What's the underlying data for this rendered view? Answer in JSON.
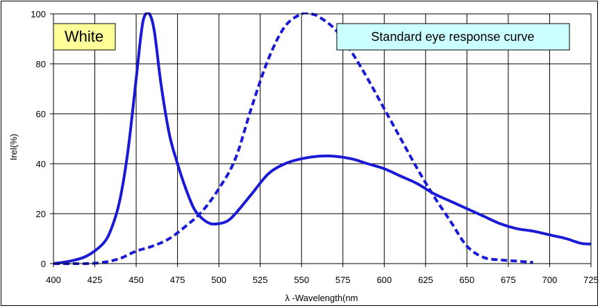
{
  "chart_data": {
    "type": "line",
    "title": "",
    "xlabel": "λ -Wavelength(nm",
    "ylabel": "Irel(%)",
    "xlim": [
      400,
      725
    ],
    "ylim": [
      0,
      100
    ],
    "x_ticks": [
      400,
      425,
      450,
      475,
      500,
      525,
      550,
      575,
      600,
      625,
      650,
      675,
      700,
      725
    ],
    "y_ticks": [
      0,
      20,
      40,
      60,
      80,
      100
    ],
    "grid": true,
    "annotations": [
      {
        "text": "White",
        "background": "#ffff99"
      },
      {
        "text": "Standard eye response curve",
        "background": "#ccffff"
      }
    ],
    "series": [
      {
        "color": "#1a1ad6",
        "style": "solid",
        "x": [
          400,
          410,
          420,
          430,
          435,
          440,
          445,
          450,
          453,
          455,
          458,
          461,
          465,
          470,
          475,
          480,
          485,
          490,
          495,
          500,
          505,
          510,
          520,
          530,
          540,
          550,
          560,
          570,
          580,
          590,
          600,
          610,
          620,
          630,
          640,
          650,
          660,
          670,
          680,
          690,
          700,
          710,
          720,
          730
        ],
        "y": [
          0,
          1,
          3,
          8,
          14,
          25,
          45,
          74,
          92,
          99,
          100,
          93,
          72,
          52,
          40,
          30,
          22,
          18,
          16,
          16,
          17,
          20,
          28,
          36,
          40,
          42,
          43,
          43,
          42,
          40,
          38,
          35,
          32,
          28,
          25,
          22,
          19,
          16,
          14,
          13,
          11.5,
          10,
          8,
          8
        ]
      },
      {
        "color": "#1a1ad6",
        "style": "dashed",
        "x": [
          400,
          410,
          420,
          430,
          440,
          450,
          460,
          470,
          480,
          490,
          500,
          510,
          520,
          530,
          540,
          550,
          555,
          560,
          570,
          580,
          590,
          600,
          610,
          620,
          630,
          640,
          650,
          660,
          670,
          680,
          690
        ],
        "y": [
          0,
          0,
          0,
          0.5,
          2,
          5,
          7,
          10,
          15,
          21,
          30,
          42,
          63,
          82,
          95,
          100,
          100,
          99,
          94,
          85,
          74,
          62,
          50,
          38,
          27,
          17,
          7,
          2.5,
          1.5,
          1,
          0.5
        ]
      }
    ]
  }
}
